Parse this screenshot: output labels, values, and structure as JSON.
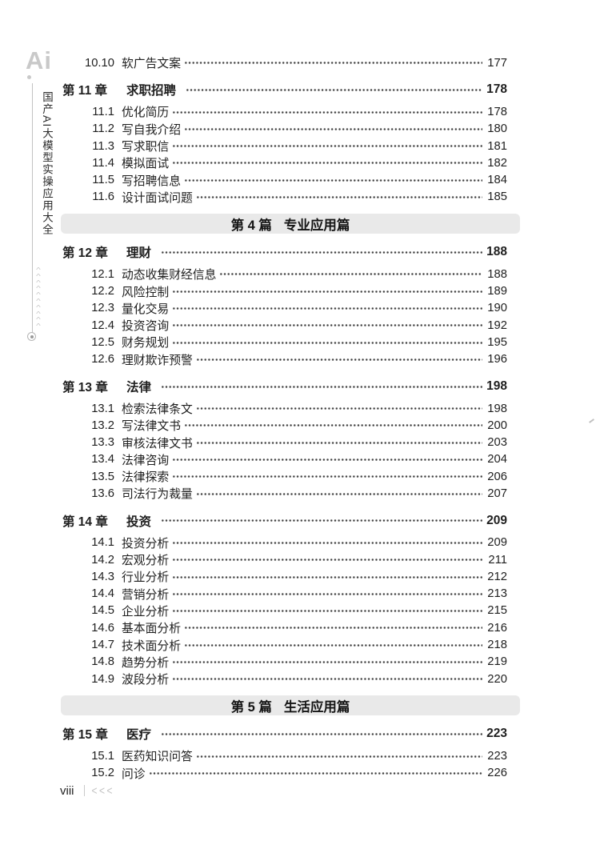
{
  "sidebar": {
    "logo_text": "Ai",
    "book_title": "国产AI大模型实操应用大全",
    "chevron_icon": "^",
    "chevron_count": 10
  },
  "footer": {
    "page_number": "viii",
    "chevrons": "<<<"
  },
  "colors": {
    "part_band_bg": "#e9e9e9",
    "text": "#1f1f1f",
    "sidebar_gray": "#c9c9c9"
  },
  "toc": {
    "entries": [
      {
        "type": "section",
        "num": "10.10",
        "title": "软广告文案",
        "page": "177"
      },
      {
        "type": "chapter",
        "num": "第 11 章",
        "title": "求职招聘",
        "page": "178"
      },
      {
        "type": "section",
        "num": "11.1",
        "title": "优化简历",
        "page": "178"
      },
      {
        "type": "section",
        "num": "11.2",
        "title": "写自我介绍",
        "page": "180"
      },
      {
        "type": "section",
        "num": "11.3",
        "title": "写求职信",
        "page": "181"
      },
      {
        "type": "section",
        "num": "11.4",
        "title": "模拟面试",
        "page": "182"
      },
      {
        "type": "section",
        "num": "11.5",
        "title": "写招聘信息",
        "page": "184"
      },
      {
        "type": "section",
        "num": "11.6",
        "title": "设计面试问题",
        "page": "185"
      },
      {
        "type": "part",
        "num": "第 4 篇",
        "title": "专业应用篇"
      },
      {
        "type": "chapter",
        "num": "第 12 章",
        "title": "理财",
        "page": "188"
      },
      {
        "type": "section",
        "num": "12.1",
        "title": "动态收集财经信息",
        "page": "188"
      },
      {
        "type": "section",
        "num": "12.2",
        "title": "风险控制",
        "page": "189"
      },
      {
        "type": "section",
        "num": "12.3",
        "title": "量化交易",
        "page": "190"
      },
      {
        "type": "section",
        "num": "12.4",
        "title": "投资咨询",
        "page": "192"
      },
      {
        "type": "section",
        "num": "12.5",
        "title": "财务规划",
        "page": "195"
      },
      {
        "type": "section",
        "num": "12.6",
        "title": "理财欺诈预警",
        "page": "196"
      },
      {
        "type": "chapter",
        "num": "第 13 章",
        "title": "法律",
        "page": "198"
      },
      {
        "type": "section",
        "num": "13.1",
        "title": "检索法律条文",
        "page": "198"
      },
      {
        "type": "section",
        "num": "13.2",
        "title": "写法律文书",
        "page": "200"
      },
      {
        "type": "section",
        "num": "13.3",
        "title": "审核法律文书",
        "page": "203"
      },
      {
        "type": "section",
        "num": "13.4",
        "title": "法律咨询",
        "page": "204"
      },
      {
        "type": "section",
        "num": "13.5",
        "title": "法律探索",
        "page": "206"
      },
      {
        "type": "section",
        "num": "13.6",
        "title": "司法行为裁量",
        "page": "207"
      },
      {
        "type": "chapter",
        "num": "第 14 章",
        "title": "投资",
        "page": "209"
      },
      {
        "type": "section",
        "num": "14.1",
        "title": "投资分析",
        "page": "209"
      },
      {
        "type": "section",
        "num": "14.2",
        "title": "宏观分析",
        "page": "211"
      },
      {
        "type": "section",
        "num": "14.3",
        "title": "行业分析",
        "page": "212"
      },
      {
        "type": "section",
        "num": "14.4",
        "title": "营销分析",
        "page": "213"
      },
      {
        "type": "section",
        "num": "14.5",
        "title": "企业分析",
        "page": "215"
      },
      {
        "type": "section",
        "num": "14.6",
        "title": "基本面分析",
        "page": "216"
      },
      {
        "type": "section",
        "num": "14.7",
        "title": "技术面分析",
        "page": "218"
      },
      {
        "type": "section",
        "num": "14.8",
        "title": "趋势分析",
        "page": "219"
      },
      {
        "type": "section",
        "num": "14.9",
        "title": "波段分析",
        "page": "220"
      },
      {
        "type": "part",
        "num": "第 5 篇",
        "title": "生活应用篇"
      },
      {
        "type": "chapter",
        "num": "第 15 章",
        "title": "医疗",
        "page": "223"
      },
      {
        "type": "section",
        "num": "15.1",
        "title": "医药知识问答",
        "page": "223"
      },
      {
        "type": "section",
        "num": "15.2",
        "title": "问诊",
        "page": "226"
      }
    ]
  }
}
